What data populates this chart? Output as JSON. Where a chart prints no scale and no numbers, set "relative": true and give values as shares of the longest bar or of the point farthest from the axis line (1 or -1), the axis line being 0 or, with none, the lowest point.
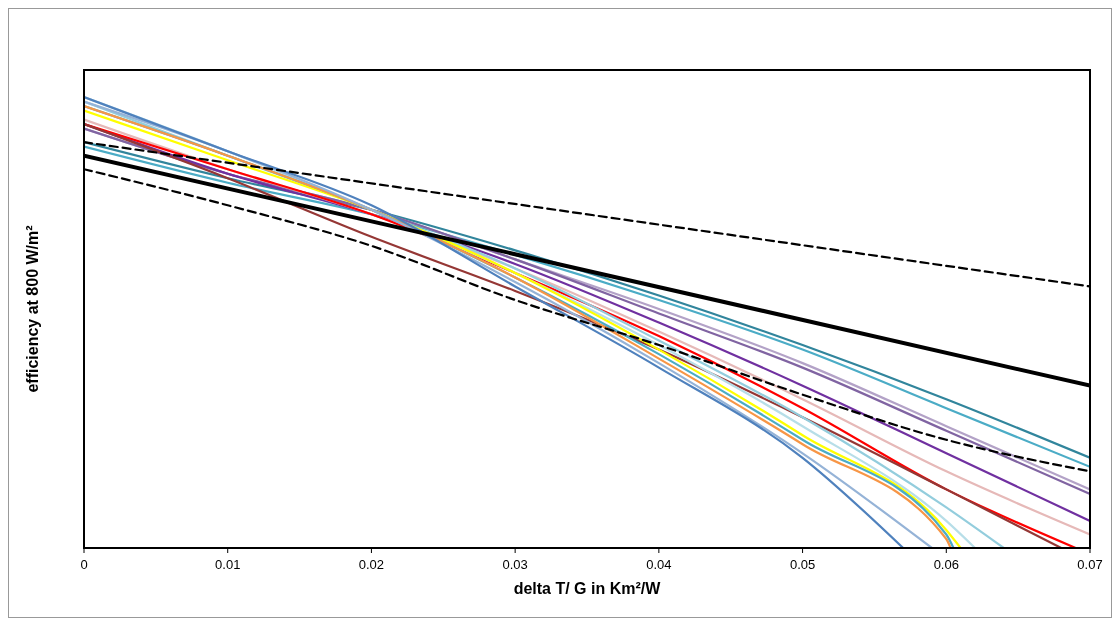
{
  "chart_data": {
    "type": "line",
    "relative": true,
    "xlabel": "delta T/ G in Km²/W",
    "ylabel": "efficiency at 800 W/m²",
    "xlim": [
      0,
      0.07
    ],
    "xticks": [
      0,
      0.01,
      0.02,
      0.03,
      0.04,
      0.05,
      0.06,
      0.07
    ],
    "tick_labels": "x",
    "grid": false,
    "marker": "none",
    "series": [
      {
        "color": "#000000",
        "x": [
          0,
          0.07
        ],
        "values": [
          0.87,
          0.36
        ]
      },
      {
        "color": "#000000",
        "line_style": "dashed",
        "x": [
          0,
          0.07
        ],
        "values": [
          0.9,
          0.58
        ]
      },
      {
        "color": "#000000",
        "line_style": "dashed",
        "x": [
          0,
          0.01,
          0.02,
          0.03,
          0.04,
          0.05,
          0.06,
          0.07
        ],
        "values": [
          0.84,
          0.76,
          0.67,
          0.55,
          0.45,
          0.34,
          0.24,
          0.17
        ]
      },
      {
        "color": "#31859c",
        "x": [
          0,
          0.01,
          0.02,
          0.03,
          0.04,
          0.05,
          0.06,
          0.07
        ],
        "values": [
          0.9,
          0.82,
          0.75,
          0.66,
          0.56,
          0.45,
          0.33,
          0.2
        ]
      },
      {
        "color": "#4bacc6",
        "x": [
          0,
          0.01,
          0.02,
          0.03,
          0.04,
          0.05,
          0.06,
          0.07
        ],
        "values": [
          0.89,
          0.81,
          0.74,
          0.65,
          0.55,
          0.44,
          0.31,
          0.18
        ]
      },
      {
        "color": "#b3a2c7",
        "x": [
          0,
          0.01,
          0.02,
          0.03,
          0.04,
          0.05,
          0.06,
          0.07
        ],
        "values": [
          0.93,
          0.83,
          0.75,
          0.64,
          0.53,
          0.41,
          0.27,
          0.13
        ]
      },
      {
        "color": "#8064a2",
        "x": [
          0,
          0.01,
          0.02,
          0.03,
          0.04,
          0.05,
          0.06,
          0.07
        ],
        "values": [
          0.93,
          0.83,
          0.75,
          0.64,
          0.52,
          0.4,
          0.26,
          0.12
        ]
      },
      {
        "color": "#7030a0",
        "x": [
          0,
          0.01,
          0.02,
          0.03,
          0.04,
          0.05,
          0.06,
          0.07
        ],
        "values": [
          0.94,
          0.83,
          0.74,
          0.63,
          0.5,
          0.36,
          0.21,
          0.06
        ]
      },
      {
        "color": "#e6b9b8",
        "x": [
          0,
          0.01,
          0.02,
          0.03,
          0.04,
          0.05,
          0.06,
          0.07
        ],
        "values": [
          0.95,
          0.84,
          0.74,
          0.62,
          0.48,
          0.33,
          0.17,
          0.03
        ]
      },
      {
        "color": "#ff0000",
        "x": [
          0,
          0.01,
          0.02,
          0.03,
          0.04,
          0.05,
          0.06,
          0.069
        ],
        "values": [
          0.94,
          0.84,
          0.74,
          0.61,
          0.47,
          0.31,
          0.13,
          0
        ]
      },
      {
        "color": "#953735",
        "x": [
          0,
          0.01,
          0.02,
          0.03,
          0.04,
          0.05,
          0.06,
          0.068
        ],
        "values": [
          0.94,
          0.82,
          0.69,
          0.57,
          0.44,
          0.29,
          0.13,
          0
        ]
      },
      {
        "color": "#93cddd",
        "x": [
          0,
          0.01,
          0.02,
          0.03,
          0.04,
          0.05,
          0.06,
          0.064
        ],
        "values": [
          0.99,
          0.87,
          0.75,
          0.62,
          0.46,
          0.29,
          0.09,
          0
        ]
      },
      {
        "color": "#b7dee8",
        "x": [
          0,
          0.01,
          0.02,
          0.03,
          0.04,
          0.05,
          0.06,
          0.062
        ],
        "values": [
          1.0,
          0.88,
          0.75,
          0.61,
          0.45,
          0.27,
          0.06,
          0
        ]
      },
      {
        "color": "#ffff00",
        "x": [
          0,
          0.01,
          0.02,
          0.03,
          0.04,
          0.05,
          0.06,
          0.061
        ],
        "values": [
          0.97,
          0.86,
          0.75,
          0.61,
          0.44,
          0.25,
          0.04,
          0
        ]
      },
      {
        "color": "#4bacc6",
        "x": [
          0,
          0.01,
          0.02,
          0.03,
          0.04,
          0.05,
          0.06,
          0.0605
        ],
        "values": [
          0.98,
          0.87,
          0.75,
          0.6,
          0.43,
          0.24,
          0.03,
          0
        ]
      },
      {
        "color": "#f79646",
        "x": [
          0,
          0.01,
          0.02,
          0.03,
          0.04,
          0.05,
          0.06,
          0.0603
        ],
        "values": [
          0.98,
          0.87,
          0.75,
          0.6,
          0.42,
          0.23,
          0.02,
          0
        ]
      },
      {
        "color": "#95b3d7",
        "x": [
          0,
          0.01,
          0.02,
          0.03,
          0.04,
          0.05,
          0.059
        ],
        "values": [
          0.99,
          0.88,
          0.75,
          0.59,
          0.41,
          0.21,
          0
        ]
      },
      {
        "color": "#4f81bd",
        "x": [
          0,
          0.01,
          0.02,
          0.03,
          0.04,
          0.05,
          0.057
        ],
        "values": [
          1.0,
          0.88,
          0.76,
          0.58,
          0.4,
          0.2,
          0
        ]
      }
    ]
  }
}
